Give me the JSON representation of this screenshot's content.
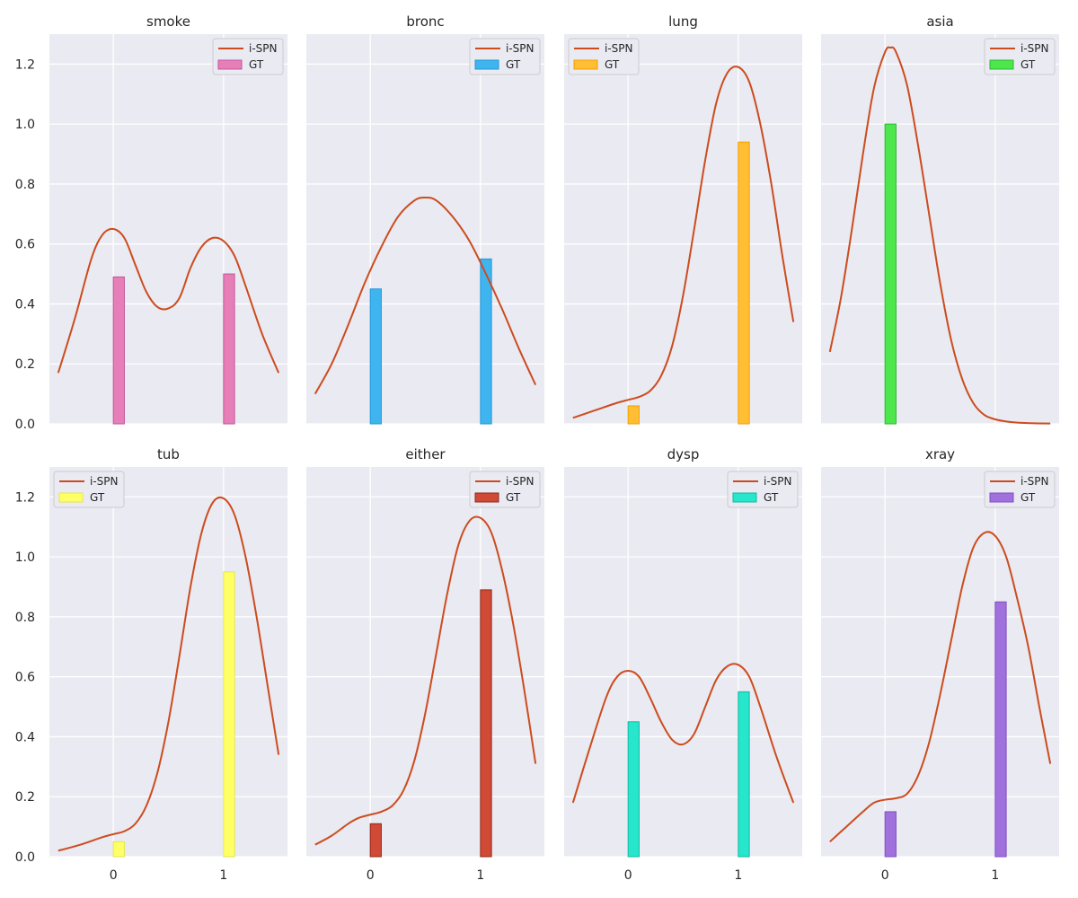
{
  "chart_data": {
    "type": "bar+line",
    "layout": "2x4 grid",
    "x_tick_labels": [
      "0",
      "1"
    ],
    "y_tick_labels": [
      "0.0",
      "0.2",
      "0.4",
      "0.6",
      "0.8",
      "1.0",
      "1.2"
    ],
    "xlim": [
      -0.58,
      1.58
    ],
    "ylim": [
      0,
      1.3
    ],
    "grid": true,
    "line_color": "#cc4c1e",
    "legend": {
      "line_label": "i-SPN",
      "bar_label": "GT"
    },
    "panels": [
      {
        "title": "smoke",
        "legend_position": "top-right",
        "bar_fill": "#e67fb8",
        "bar_edge": "#c4559a",
        "gt_values": [
          0.49,
          0.5
        ],
        "curve": [
          [
            -0.5,
            0.17
          ],
          [
            -0.35,
            0.35
          ],
          [
            -0.2,
            0.55
          ],
          [
            -0.1,
            0.63
          ],
          [
            0.0,
            0.65
          ],
          [
            0.1,
            0.62
          ],
          [
            0.2,
            0.53
          ],
          [
            0.3,
            0.44
          ],
          [
            0.4,
            0.39
          ],
          [
            0.5,
            0.385
          ],
          [
            0.6,
            0.42
          ],
          [
            0.7,
            0.52
          ],
          [
            0.8,
            0.59
          ],
          [
            0.9,
            0.62
          ],
          [
            1.0,
            0.61
          ],
          [
            1.1,
            0.56
          ],
          [
            1.2,
            0.46
          ],
          [
            1.35,
            0.3
          ],
          [
            1.5,
            0.17
          ]
        ]
      },
      {
        "title": "bronc",
        "legend_position": "top-right",
        "bar_fill": "#3fb5f0",
        "bar_edge": "#2196d6",
        "gt_values": [
          0.45,
          0.55
        ],
        "curve": [
          [
            -0.5,
            0.1
          ],
          [
            -0.35,
            0.2
          ],
          [
            -0.2,
            0.33
          ],
          [
            -0.05,
            0.47
          ],
          [
            0.1,
            0.59
          ],
          [
            0.25,
            0.69
          ],
          [
            0.4,
            0.745
          ],
          [
            0.5,
            0.755
          ],
          [
            0.6,
            0.745
          ],
          [
            0.75,
            0.69
          ],
          [
            0.9,
            0.61
          ],
          [
            1.05,
            0.5
          ],
          [
            1.2,
            0.38
          ],
          [
            1.35,
            0.25
          ],
          [
            1.5,
            0.13
          ]
        ]
      },
      {
        "title": "lung",
        "legend_position": "top-left",
        "bar_fill": "#ffbe33",
        "bar_edge": "#f0a000",
        "gt_values": [
          0.06,
          0.94
        ],
        "curve": [
          [
            -0.5,
            0.02
          ],
          [
            -0.3,
            0.045
          ],
          [
            -0.1,
            0.07
          ],
          [
            0.0,
            0.08
          ],
          [
            0.1,
            0.09
          ],
          [
            0.2,
            0.11
          ],
          [
            0.3,
            0.16
          ],
          [
            0.4,
            0.26
          ],
          [
            0.5,
            0.43
          ],
          [
            0.6,
            0.65
          ],
          [
            0.7,
            0.88
          ],
          [
            0.8,
            1.07
          ],
          [
            0.9,
            1.17
          ],
          [
            1.0,
            1.19
          ],
          [
            1.1,
            1.14
          ],
          [
            1.2,
            1.0
          ],
          [
            1.3,
            0.8
          ],
          [
            1.4,
            0.56
          ],
          [
            1.5,
            0.34
          ]
        ]
      },
      {
        "title": "asia",
        "legend_position": "top-right",
        "bar_fill": "#4de64d",
        "bar_edge": "#2eb82e",
        "gt_values": [
          1.0,
          0.0
        ],
        "curve": [
          [
            -0.5,
            0.24
          ],
          [
            -0.4,
            0.42
          ],
          [
            -0.3,
            0.65
          ],
          [
            -0.2,
            0.9
          ],
          [
            -0.1,
            1.12
          ],
          [
            0.0,
            1.24
          ],
          [
            0.05,
            1.255
          ],
          [
            0.1,
            1.24
          ],
          [
            0.2,
            1.13
          ],
          [
            0.3,
            0.93
          ],
          [
            0.4,
            0.7
          ],
          [
            0.5,
            0.47
          ],
          [
            0.6,
            0.28
          ],
          [
            0.7,
            0.15
          ],
          [
            0.8,
            0.07
          ],
          [
            0.9,
            0.03
          ],
          [
            1.0,
            0.015
          ],
          [
            1.1,
            0.008
          ],
          [
            1.2,
            0.004
          ],
          [
            1.35,
            0.002
          ],
          [
            1.5,
            0.001
          ]
        ]
      },
      {
        "title": "tub",
        "legend_position": "top-left",
        "bar_fill": "#ffff66",
        "bar_edge": "#e6e64d",
        "gt_values": [
          0.05,
          0.95
        ],
        "curve": [
          [
            -0.5,
            0.02
          ],
          [
            -0.3,
            0.04
          ],
          [
            -0.1,
            0.065
          ],
          [
            0.0,
            0.075
          ],
          [
            0.1,
            0.085
          ],
          [
            0.2,
            0.11
          ],
          [
            0.3,
            0.17
          ],
          [
            0.4,
            0.28
          ],
          [
            0.5,
            0.45
          ],
          [
            0.6,
            0.67
          ],
          [
            0.7,
            0.9
          ],
          [
            0.8,
            1.08
          ],
          [
            0.9,
            1.18
          ],
          [
            1.0,
            1.195
          ],
          [
            1.1,
            1.14
          ],
          [
            1.2,
            1.0
          ],
          [
            1.3,
            0.8
          ],
          [
            1.4,
            0.57
          ],
          [
            1.5,
            0.34
          ]
        ]
      },
      {
        "title": "either",
        "legend_position": "top-right",
        "bar_fill": "#d14a35",
        "bar_edge": "#8c2a1c",
        "gt_values": [
          0.11,
          0.89
        ],
        "curve": [
          [
            -0.5,
            0.04
          ],
          [
            -0.35,
            0.07
          ],
          [
            -0.2,
            0.11
          ],
          [
            -0.1,
            0.13
          ],
          [
            0.0,
            0.14
          ],
          [
            0.1,
            0.15
          ],
          [
            0.2,
            0.17
          ],
          [
            0.3,
            0.22
          ],
          [
            0.4,
            0.32
          ],
          [
            0.5,
            0.48
          ],
          [
            0.6,
            0.68
          ],
          [
            0.7,
            0.88
          ],
          [
            0.8,
            1.04
          ],
          [
            0.9,
            1.12
          ],
          [
            1.0,
            1.13
          ],
          [
            1.1,
            1.08
          ],
          [
            1.2,
            0.95
          ],
          [
            1.3,
            0.77
          ],
          [
            1.4,
            0.55
          ],
          [
            1.5,
            0.31
          ]
        ]
      },
      {
        "title": "dysp",
        "legend_position": "top-right",
        "bar_fill": "#26e6cc",
        "bar_edge": "#14b8a0",
        "gt_values": [
          0.45,
          0.55
        ],
        "curve": [
          [
            -0.5,
            0.18
          ],
          [
            -0.35,
            0.36
          ],
          [
            -0.2,
            0.53
          ],
          [
            -0.1,
            0.6
          ],
          [
            0.0,
            0.62
          ],
          [
            0.1,
            0.6
          ],
          [
            0.2,
            0.53
          ],
          [
            0.3,
            0.45
          ],
          [
            0.4,
            0.39
          ],
          [
            0.5,
            0.375
          ],
          [
            0.6,
            0.41
          ],
          [
            0.7,
            0.5
          ],
          [
            0.8,
            0.59
          ],
          [
            0.9,
            0.635
          ],
          [
            1.0,
            0.64
          ],
          [
            1.1,
            0.6
          ],
          [
            1.2,
            0.5
          ],
          [
            1.35,
            0.33
          ],
          [
            1.5,
            0.18
          ]
        ]
      },
      {
        "title": "xray",
        "legend_position": "top-right",
        "bar_fill": "#a070dc",
        "bar_edge": "#8050c4",
        "gt_values": [
          0.15,
          0.85
        ],
        "curve": [
          [
            -0.5,
            0.05
          ],
          [
            -0.35,
            0.1
          ],
          [
            -0.2,
            0.15
          ],
          [
            -0.1,
            0.18
          ],
          [
            0.0,
            0.19
          ],
          [
            0.1,
            0.195
          ],
          [
            0.2,
            0.21
          ],
          [
            0.3,
            0.27
          ],
          [
            0.4,
            0.38
          ],
          [
            0.5,
            0.54
          ],
          [
            0.6,
            0.72
          ],
          [
            0.7,
            0.9
          ],
          [
            0.8,
            1.03
          ],
          [
            0.9,
            1.08
          ],
          [
            1.0,
            1.07
          ],
          [
            1.1,
            1.0
          ],
          [
            1.2,
            0.86
          ],
          [
            1.3,
            0.7
          ],
          [
            1.4,
            0.5
          ],
          [
            1.5,
            0.31
          ]
        ]
      }
    ]
  }
}
